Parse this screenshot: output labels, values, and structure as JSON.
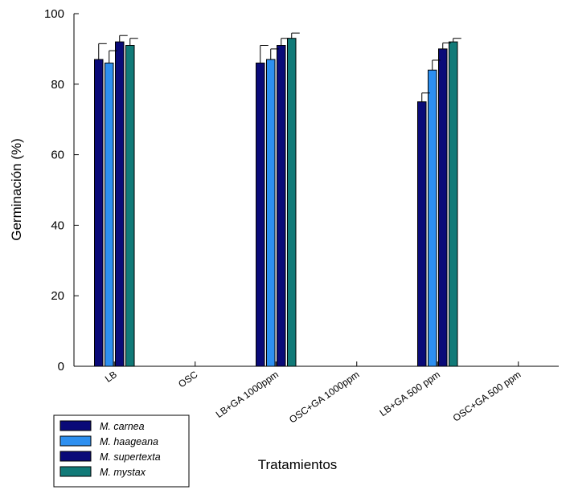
{
  "chart_data": {
    "type": "bar",
    "title": "",
    "xlabel": "Tratamientos",
    "ylabel": "Germinación (%)",
    "ylim": [
      0,
      100
    ],
    "yticks": [
      0,
      20,
      40,
      60,
      80,
      100
    ],
    "categories": [
      "LB",
      "OSC",
      "LB+GA 1000ppm",
      "OSC+GA 1000ppm",
      "LB+GA 500 ppm",
      "OSC+GA 500 ppm"
    ],
    "series": [
      {
        "name": "M. carnea",
        "color": "#0a0a78",
        "values": [
          87,
          0,
          86,
          0,
          75,
          0
        ],
        "errors": [
          4.5,
          0,
          5,
          0,
          2.5,
          0
        ]
      },
      {
        "name": "M. haageana",
        "color": "#2d8ff0",
        "values": [
          86,
          0,
          87,
          0,
          84,
          0
        ],
        "errors": [
          3.5,
          0,
          3,
          0,
          2.8,
          0
        ]
      },
      {
        "name": "M. supertexta",
        "color": "#0a0a78",
        "values": [
          92,
          0,
          91,
          0,
          90,
          0
        ],
        "errors": [
          1.8,
          0,
          2,
          0,
          1.7,
          0
        ]
      },
      {
        "name": "M. mystax",
        "color": "#117a78",
        "values": [
          91,
          0,
          93,
          0,
          92,
          0
        ],
        "errors": [
          2,
          0,
          1.5,
          0,
          1,
          0
        ]
      }
    ],
    "grid": false,
    "legend_position": "bottom-left"
  }
}
